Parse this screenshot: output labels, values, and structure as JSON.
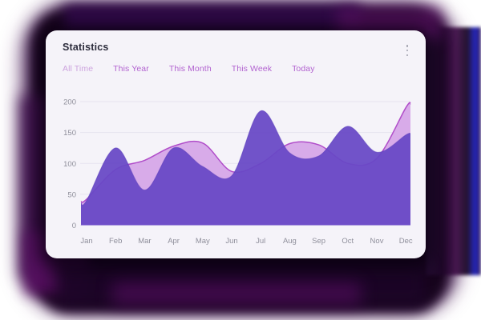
{
  "header": {
    "title": "Statistics",
    "menu_icon": "kebab-vertical-icon"
  },
  "tabs": [
    {
      "label": "All Time",
      "active": true
    },
    {
      "label": "This Year",
      "active": false
    },
    {
      "label": "This Month",
      "active": false
    },
    {
      "label": "This Week",
      "active": false
    },
    {
      "label": "Today",
      "active": false
    }
  ],
  "chart_data": {
    "type": "area",
    "categories": [
      "Jan",
      "Feb",
      "Mar",
      "Apr",
      "May",
      "Jun",
      "Jul",
      "Aug",
      "Sep",
      "Oct",
      "Nov",
      "Dec"
    ],
    "series": [
      {
        "name": "light-series",
        "fill": "#d8abe9",
        "stroke": "#b04dc9",
        "values": [
          42,
          90,
          105,
          128,
          133,
          87,
          100,
          132,
          130,
          100,
          108,
          190
        ]
      },
      {
        "name": "dark-series",
        "fill": "#6848c6",
        "stroke": "#5a3cbb",
        "values": [
          40,
          125,
          57,
          125,
          95,
          80,
          185,
          117,
          112,
          160,
          118,
          146
        ]
      }
    ],
    "ylim": [
      0,
      200
    ],
    "yticks": [
      0,
      50,
      100,
      150,
      200
    ],
    "grid": true,
    "legend": "none",
    "curve": "smooth-spline"
  },
  "colors": {
    "card_background": "#f5f3f9",
    "title_text": "#2c2c3c",
    "tab_active": "#cda4de",
    "tab_inactive": "#b263d0",
    "axis_label": "#8f8f9b",
    "gridline": "#e6e3ef",
    "menu_dots": "#a0a0ad",
    "shadow_dark": "#140319",
    "shadow_magenta": "#5c1066",
    "shadow_blue": "#1313a8"
  }
}
